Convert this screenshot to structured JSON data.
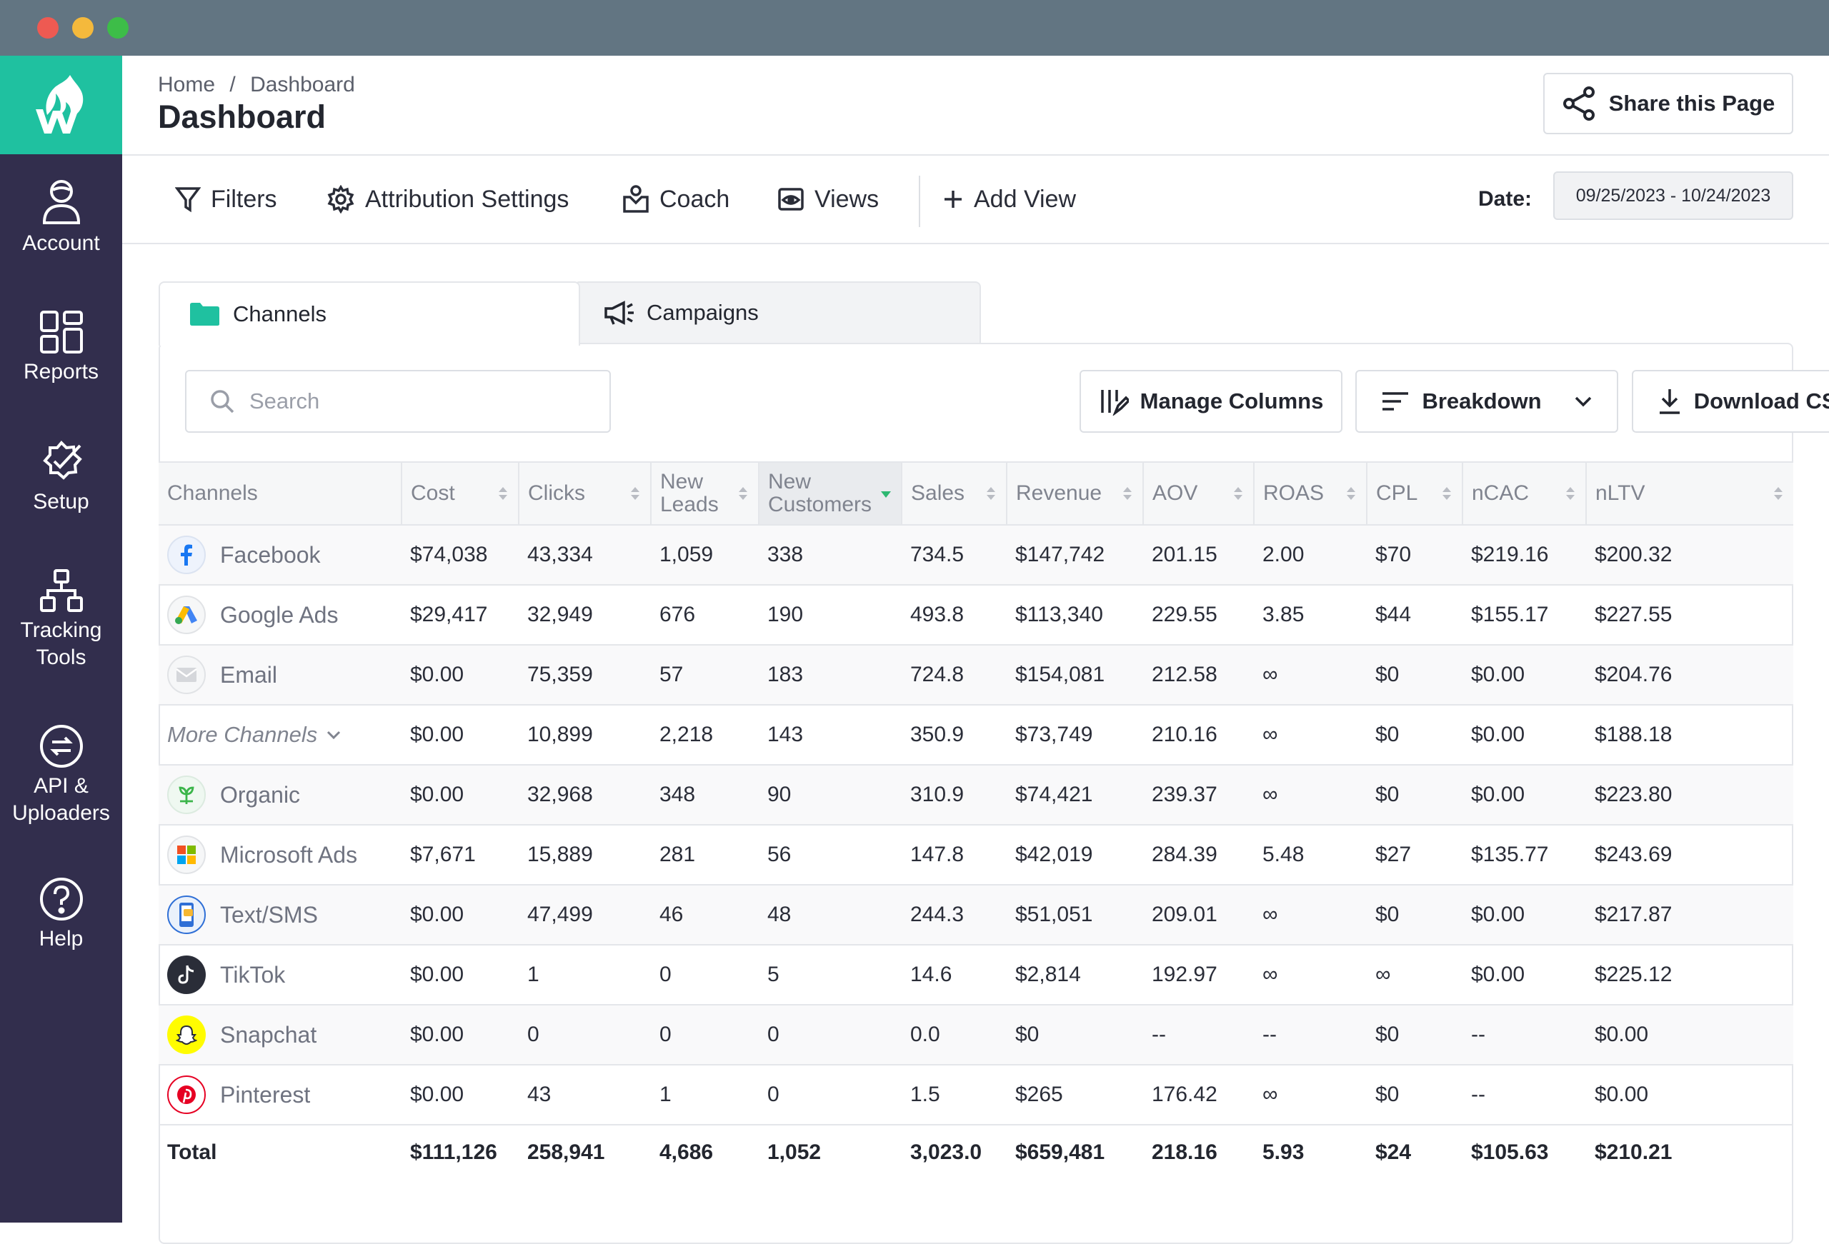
{
  "window": {
    "traffic_lights": [
      "#ee5a52",
      "#f4b93c",
      "#3dbd48"
    ]
  },
  "colors": {
    "sidebar_bg": "#322e4d",
    "logo_bg": "#1fc1a0",
    "titlebar_bg": "#627582",
    "accent": "#1fc1a0",
    "sort_arrow": "#2eb872"
  },
  "sidebar": {
    "logo_icon": "wicked-flame-logo",
    "items": [
      {
        "label_lines": [
          "Account"
        ],
        "icon": "user-icon"
      },
      {
        "label_lines": [
          "Reports"
        ],
        "icon": "dashboard-grid-icon"
      },
      {
        "label_lines": [
          "Setup"
        ],
        "icon": "badge-check-icon"
      },
      {
        "label_lines": [
          "Tracking",
          "Tools"
        ],
        "icon": "hierarchy-icon"
      },
      {
        "label_lines": [
          "API &",
          "Uploaders"
        ],
        "icon": "swap-arrows-icon"
      },
      {
        "label_lines": [
          "Help"
        ],
        "icon": "question-icon"
      }
    ]
  },
  "header": {
    "breadcrumb": [
      "Home",
      "/",
      "Dashboard"
    ],
    "title": "Dashboard",
    "share_label": "Share this Page"
  },
  "toolbar": {
    "filters": "Filters",
    "attribution": "Attribution Settings",
    "coach": "Coach",
    "views": "Views",
    "add_view": "Add View",
    "date_label": "Date:",
    "date_value": "09/25/2023 - 10/24/2023"
  },
  "tabs": {
    "channels": "Channels",
    "campaigns": "Campaigns",
    "active": "Channels"
  },
  "controls": {
    "search_placeholder": "Search",
    "manage_columns": "Manage Columns",
    "breakdown": "Breakdown",
    "download_csv": "Download CSV"
  },
  "table": {
    "columns": [
      {
        "lines": [
          "Channels"
        ],
        "sortable": false
      },
      {
        "lines": [
          "Cost"
        ],
        "sortable": true
      },
      {
        "lines": [
          "Clicks"
        ],
        "sortable": true
      },
      {
        "lines": [
          "New",
          "Leads"
        ],
        "sortable": true
      },
      {
        "lines": [
          "New",
          "Customers"
        ],
        "sortable": true,
        "sorted": "desc"
      },
      {
        "lines": [
          "Sales"
        ],
        "sortable": true
      },
      {
        "lines": [
          "Revenue"
        ],
        "sortable": true
      },
      {
        "lines": [
          "AOV"
        ],
        "sortable": true
      },
      {
        "lines": [
          "ROAS"
        ],
        "sortable": true
      },
      {
        "lines": [
          "CPL"
        ],
        "sortable": true
      },
      {
        "lines": [
          "nCAC"
        ],
        "sortable": true
      },
      {
        "lines": [
          "nLTV"
        ],
        "sortable": true
      }
    ],
    "rows": [
      {
        "channel": "Facebook",
        "icon": "facebook-icon",
        "values": [
          "$74,038",
          "43,334",
          "1,059",
          "338",
          "734.5",
          "$147,742",
          "201.15",
          "2.00",
          "$70",
          "$219.16",
          "$200.32"
        ]
      },
      {
        "channel": "Google Ads",
        "icon": "google-ads-icon",
        "values": [
          "$29,417",
          "32,949",
          "676",
          "190",
          "493.8",
          "$113,340",
          "229.55",
          "3.85",
          "$44",
          "$155.17",
          "$227.55"
        ]
      },
      {
        "channel": "Email",
        "icon": "email-icon",
        "values": [
          "$0.00",
          "75,359",
          "57",
          "183",
          "724.8",
          "$154,081",
          "212.58",
          "∞",
          "$0",
          "$0.00",
          "$204.76"
        ]
      },
      {
        "channel": "More Channels",
        "icon": "chevron-down-icon",
        "is_group": true,
        "values": [
          "$0.00",
          "10,899",
          "2,218",
          "143",
          "350.9",
          "$73,749",
          "210.16",
          "∞",
          "$0",
          "$0.00",
          "$188.18"
        ]
      },
      {
        "channel": "Organic",
        "icon": "organic-sprout-icon",
        "values": [
          "$0.00",
          "32,968",
          "348",
          "90",
          "310.9",
          "$74,421",
          "239.37",
          "∞",
          "$0",
          "$0.00",
          "$223.80"
        ]
      },
      {
        "channel": "Microsoft Ads",
        "icon": "microsoft-icon",
        "values": [
          "$7,671",
          "15,889",
          "281",
          "56",
          "147.8",
          "$42,019",
          "284.39",
          "5.48",
          "$27",
          "$135.77",
          "$243.69"
        ]
      },
      {
        "channel": "Text/SMS",
        "icon": "phone-sms-icon",
        "values": [
          "$0.00",
          "47,499",
          "46",
          "48",
          "244.3",
          "$51,051",
          "209.01",
          "∞",
          "$0",
          "$0.00",
          "$217.87"
        ]
      },
      {
        "channel": "TikTok",
        "icon": "tiktok-icon",
        "values": [
          "$0.00",
          "1",
          "0",
          "5",
          "14.6",
          "$2,814",
          "192.97",
          "∞",
          "∞",
          "$0.00",
          "$225.12"
        ]
      },
      {
        "channel": "Snapchat",
        "icon": "snapchat-icon",
        "values": [
          "$0.00",
          "0",
          "0",
          "0",
          "0.0",
          "$0",
          "--",
          "--",
          "$0",
          "--",
          "$0.00"
        ]
      },
      {
        "channel": "Pinterest",
        "icon": "pinterest-icon",
        "values": [
          "$0.00",
          "43",
          "1",
          "0",
          "1.5",
          "$265",
          "176.42",
          "∞",
          "$0",
          "--",
          "$0.00"
        ]
      }
    ],
    "total": {
      "label": "Total",
      "values": [
        "$111,126",
        "258,941",
        "4,686",
        "1,052",
        "3,023.0",
        "$659,481",
        "218.16",
        "5.93",
        "$24",
        "$105.63",
        "$210.21"
      ]
    }
  }
}
